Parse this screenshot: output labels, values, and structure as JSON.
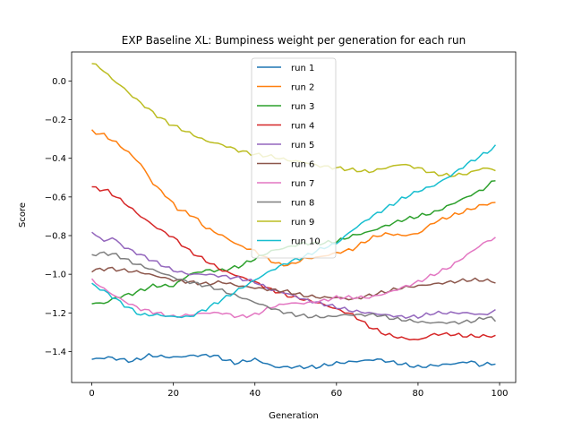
{
  "chart_data": {
    "type": "line",
    "title": "EXP Baseline XL: Bumpiness weight per generation for each run",
    "xlabel": "Generation",
    "ylabel": "Score",
    "xlim": [
      -4.95,
      103.95
    ],
    "ylim": [
      -1.56,
      0.15
    ],
    "xticks": [
      0,
      20,
      40,
      60,
      80,
      100
    ],
    "yticks": [
      -1.4,
      -1.2,
      -1.0,
      -0.8,
      -0.6,
      -0.4,
      -0.2,
      0.0
    ],
    "xtick_labels": [
      "0",
      "20",
      "40",
      "60",
      "80",
      "100"
    ],
    "ytick_labels": [
      "−1.4",
      "−1.2",
      "−1.0",
      "−0.8",
      "−0.6",
      "−0.4",
      "−0.2",
      "0.0"
    ],
    "legend_position": "top-center",
    "grid": false,
    "x_start": 0,
    "x_step": 1,
    "series": [
      {
        "name": "run 1",
        "color": "#1f77b4",
        "anchors": [
          [
            0,
            -1.44
          ],
          [
            4,
            -1.43
          ],
          [
            10,
            -1.45
          ],
          [
            14,
            -1.42
          ],
          [
            20,
            -1.43
          ],
          [
            25,
            -1.42
          ],
          [
            30,
            -1.42
          ],
          [
            35,
            -1.46
          ],
          [
            40,
            -1.44
          ],
          [
            45,
            -1.48
          ],
          [
            50,
            -1.48
          ],
          [
            55,
            -1.48
          ],
          [
            60,
            -1.46
          ],
          [
            65,
            -1.45
          ],
          [
            70,
            -1.44
          ],
          [
            75,
            -1.46
          ],
          [
            80,
            -1.48
          ],
          [
            85,
            -1.47
          ],
          [
            90,
            -1.46
          ],
          [
            93,
            -1.45
          ],
          [
            95,
            -1.47
          ],
          [
            99,
            -1.46
          ]
        ]
      },
      {
        "name": "run 2",
        "color": "#ff7f0e",
        "anchors": [
          [
            0,
            -0.26
          ],
          [
            3,
            -0.28
          ],
          [
            6,
            -0.32
          ],
          [
            9,
            -0.37
          ],
          [
            12,
            -0.43
          ],
          [
            15,
            -0.53
          ],
          [
            18,
            -0.59
          ],
          [
            21,
            -0.66
          ],
          [
            25,
            -0.7
          ],
          [
            28,
            -0.76
          ],
          [
            32,
            -0.8
          ],
          [
            36,
            -0.85
          ],
          [
            40,
            -0.88
          ],
          [
            43,
            -0.92
          ],
          [
            46,
            -0.95
          ],
          [
            49,
            -0.95
          ],
          [
            52,
            -0.92
          ],
          [
            56,
            -0.91
          ],
          [
            60,
            -0.89
          ],
          [
            64,
            -0.87
          ],
          [
            67,
            -0.83
          ],
          [
            70,
            -0.8
          ],
          [
            73,
            -0.79
          ],
          [
            76,
            -0.8
          ],
          [
            80,
            -0.79
          ],
          [
            84,
            -0.73
          ],
          [
            88,
            -0.7
          ],
          [
            92,
            -0.67
          ],
          [
            96,
            -0.64
          ],
          [
            99,
            -0.63
          ]
        ]
      },
      {
        "name": "run 3",
        "color": "#2ca02c",
        "anchors": [
          [
            0,
            -1.15
          ],
          [
            3,
            -1.15
          ],
          [
            6,
            -1.12
          ],
          [
            10,
            -1.1
          ],
          [
            15,
            -1.06
          ],
          [
            20,
            -1.06
          ],
          [
            24,
            -1.0
          ],
          [
            28,
            -0.98
          ],
          [
            32,
            -0.98
          ],
          [
            36,
            -0.96
          ],
          [
            40,
            -0.92
          ],
          [
            44,
            -0.88
          ],
          [
            48,
            -0.86
          ],
          [
            52,
            -0.84
          ],
          [
            56,
            -0.84
          ],
          [
            60,
            -0.83
          ],
          [
            64,
            -0.8
          ],
          [
            68,
            -0.78
          ],
          [
            72,
            -0.75
          ],
          [
            76,
            -0.72
          ],
          [
            80,
            -0.7
          ],
          [
            84,
            -0.68
          ],
          [
            88,
            -0.64
          ],
          [
            92,
            -0.6
          ],
          [
            96,
            -0.56
          ],
          [
            99,
            -0.51
          ]
        ]
      },
      {
        "name": "run 4",
        "color": "#d62728",
        "anchors": [
          [
            0,
            -0.55
          ],
          [
            4,
            -0.57
          ],
          [
            8,
            -0.63
          ],
          [
            12,
            -0.7
          ],
          [
            16,
            -0.76
          ],
          [
            20,
            -0.81
          ],
          [
            24,
            -0.88
          ],
          [
            28,
            -0.93
          ],
          [
            32,
            -0.98
          ],
          [
            36,
            -1.01
          ],
          [
            40,
            -1.04
          ],
          [
            44,
            -1.08
          ],
          [
            48,
            -1.11
          ],
          [
            52,
            -1.13
          ],
          [
            56,
            -1.15
          ],
          [
            60,
            -1.18
          ],
          [
            64,
            -1.21
          ],
          [
            68,
            -1.27
          ],
          [
            72,
            -1.31
          ],
          [
            76,
            -1.33
          ],
          [
            80,
            -1.34
          ],
          [
            84,
            -1.31
          ],
          [
            88,
            -1.31
          ],
          [
            92,
            -1.32
          ],
          [
            96,
            -1.32
          ],
          [
            99,
            -1.32
          ]
        ]
      },
      {
        "name": "run 5",
        "color": "#9467bd",
        "anchors": [
          [
            0,
            -0.78
          ],
          [
            3,
            -0.83
          ],
          [
            5,
            -0.81
          ],
          [
            8,
            -0.86
          ],
          [
            12,
            -0.9
          ],
          [
            16,
            -0.94
          ],
          [
            20,
            -0.98
          ],
          [
            24,
            -1.0
          ],
          [
            28,
            -1.0
          ],
          [
            32,
            -1.01
          ],
          [
            36,
            -1.02
          ],
          [
            40,
            -1.04
          ],
          [
            44,
            -1.08
          ],
          [
            48,
            -1.1
          ],
          [
            52,
            -1.13
          ],
          [
            56,
            -1.15
          ],
          [
            60,
            -1.17
          ],
          [
            64,
            -1.19
          ],
          [
            68,
            -1.2
          ],
          [
            72,
            -1.21
          ],
          [
            76,
            -1.22
          ],
          [
            80,
            -1.22
          ],
          [
            84,
            -1.2
          ],
          [
            88,
            -1.2
          ],
          [
            92,
            -1.2
          ],
          [
            96,
            -1.21
          ],
          [
            99,
            -1.19
          ]
        ]
      },
      {
        "name": "run 6",
        "color": "#8c564b",
        "anchors": [
          [
            0,
            -0.98
          ],
          [
            4,
            -0.97
          ],
          [
            8,
            -0.98
          ],
          [
            12,
            -0.99
          ],
          [
            16,
            -1.01
          ],
          [
            20,
            -1.03
          ],
          [
            24,
            -1.04
          ],
          [
            28,
            -1.05
          ],
          [
            32,
            -1.04
          ],
          [
            36,
            -1.06
          ],
          [
            40,
            -1.07
          ],
          [
            44,
            -1.08
          ],
          [
            48,
            -1.09
          ],
          [
            52,
            -1.11
          ],
          [
            56,
            -1.12
          ],
          [
            60,
            -1.12
          ],
          [
            64,
            -1.13
          ],
          [
            68,
            -1.11
          ],
          [
            72,
            -1.09
          ],
          [
            76,
            -1.07
          ],
          [
            80,
            -1.06
          ],
          [
            84,
            -1.05
          ],
          [
            88,
            -1.04
          ],
          [
            92,
            -1.03
          ],
          [
            96,
            -1.03
          ],
          [
            99,
            -1.04
          ]
        ]
      },
      {
        "name": "run 7",
        "color": "#e377c2",
        "anchors": [
          [
            0,
            -1.03
          ],
          [
            4,
            -1.09
          ],
          [
            8,
            -1.14
          ],
          [
            12,
            -1.18
          ],
          [
            16,
            -1.2
          ],
          [
            20,
            -1.22
          ],
          [
            24,
            -1.21
          ],
          [
            28,
            -1.2
          ],
          [
            32,
            -1.2
          ],
          [
            36,
            -1.22
          ],
          [
            40,
            -1.21
          ],
          [
            44,
            -1.17
          ],
          [
            48,
            -1.15
          ],
          [
            52,
            -1.15
          ],
          [
            56,
            -1.14
          ],
          [
            60,
            -1.12
          ],
          [
            64,
            -1.12
          ],
          [
            68,
            -1.12
          ],
          [
            72,
            -1.1
          ],
          [
            76,
            -1.07
          ],
          [
            80,
            -1.04
          ],
          [
            84,
            -1.0
          ],
          [
            88,
            -0.96
          ],
          [
            92,
            -0.9
          ],
          [
            96,
            -0.84
          ],
          [
            99,
            -0.81
          ]
        ]
      },
      {
        "name": "run 8",
        "color": "#7f7f7f",
        "anchors": [
          [
            0,
            -0.9
          ],
          [
            3,
            -0.89
          ],
          [
            6,
            -0.9
          ],
          [
            10,
            -0.94
          ],
          [
            14,
            -0.97
          ],
          [
            18,
            -1.0
          ],
          [
            22,
            -1.03
          ],
          [
            26,
            -1.05
          ],
          [
            30,
            -1.07
          ],
          [
            34,
            -1.1
          ],
          [
            38,
            -1.13
          ],
          [
            42,
            -1.16
          ],
          [
            46,
            -1.19
          ],
          [
            50,
            -1.21
          ],
          [
            54,
            -1.22
          ],
          [
            58,
            -1.22
          ],
          [
            62,
            -1.21
          ],
          [
            66,
            -1.21
          ],
          [
            70,
            -1.21
          ],
          [
            74,
            -1.23
          ],
          [
            78,
            -1.24
          ],
          [
            82,
            -1.25
          ],
          [
            86,
            -1.25
          ],
          [
            90,
            -1.25
          ],
          [
            94,
            -1.24
          ],
          [
            97,
            -1.22
          ],
          [
            99,
            -1.24
          ]
        ]
      },
      {
        "name": "run 9",
        "color": "#bcbd22",
        "anchors": [
          [
            0,
            0.09
          ],
          [
            2,
            0.07
          ],
          [
            5,
            0.01
          ],
          [
            8,
            -0.04
          ],
          [
            10,
            -0.08
          ],
          [
            13,
            -0.13
          ],
          [
            16,
            -0.18
          ],
          [
            19,
            -0.22
          ],
          [
            22,
            -0.25
          ],
          [
            25,
            -0.28
          ],
          [
            28,
            -0.31
          ],
          [
            32,
            -0.33
          ],
          [
            36,
            -0.36
          ],
          [
            40,
            -0.38
          ],
          [
            44,
            -0.39
          ],
          [
            48,
            -0.41
          ],
          [
            52,
            -0.42
          ],
          [
            56,
            -0.44
          ],
          [
            60,
            -0.45
          ],
          [
            64,
            -0.46
          ],
          [
            68,
            -0.47
          ],
          [
            72,
            -0.45
          ],
          [
            76,
            -0.43
          ],
          [
            80,
            -0.45
          ],
          [
            84,
            -0.48
          ],
          [
            88,
            -0.49
          ],
          [
            92,
            -0.48
          ],
          [
            96,
            -0.45
          ],
          [
            99,
            -0.46
          ]
        ]
      },
      {
        "name": "run 10",
        "color": "#17becf",
        "anchors": [
          [
            0,
            -1.05
          ],
          [
            4,
            -1.1
          ],
          [
            8,
            -1.16
          ],
          [
            12,
            -1.21
          ],
          [
            16,
            -1.21
          ],
          [
            20,
            -1.22
          ],
          [
            24,
            -1.22
          ],
          [
            28,
            -1.18
          ],
          [
            32,
            -1.13
          ],
          [
            36,
            -1.08
          ],
          [
            40,
            -1.03
          ],
          [
            44,
            -0.98
          ],
          [
            48,
            -0.94
          ],
          [
            52,
            -0.91
          ],
          [
            56,
            -0.87
          ],
          [
            60,
            -0.84
          ],
          [
            64,
            -0.77
          ],
          [
            68,
            -0.71
          ],
          [
            72,
            -0.66
          ],
          [
            76,
            -0.61
          ],
          [
            80,
            -0.57
          ],
          [
            84,
            -0.54
          ],
          [
            88,
            -0.49
          ],
          [
            92,
            -0.43
          ],
          [
            96,
            -0.38
          ],
          [
            99,
            -0.34
          ]
        ]
      }
    ]
  }
}
